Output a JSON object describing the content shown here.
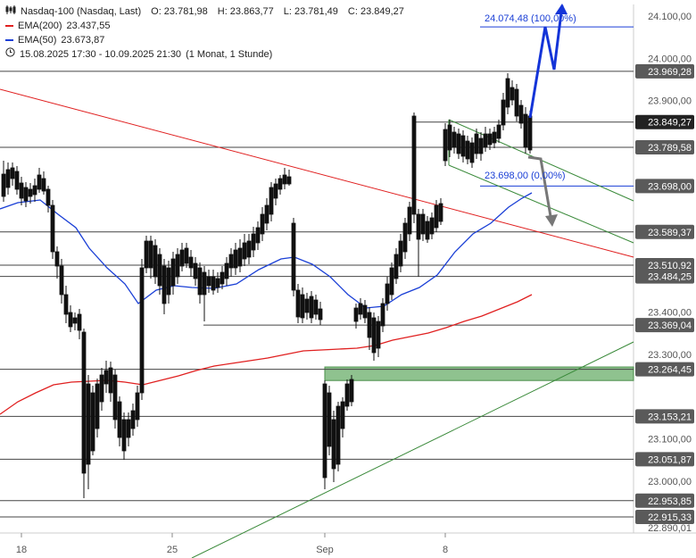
{
  "header": {
    "instrument": "Nasdaq-100 (Nasdaq, Last)",
    "open": "O: 23.781,98",
    "high": "H: 23.863,77",
    "low": "L: 23.781,49",
    "close": "C: 23.849,27",
    "ema200_label": "EMA(200)",
    "ema200_value": "23.437,55",
    "ema50_label": "EMA(50)",
    "ema50_value": "23.673,87",
    "range_text": "15.08.2025 17:30 - 10.09.2025 21:30",
    "interval_text": "(1 Monat, 1 Stunde)",
    "icons": [
      "candlestick-icon",
      "clock-icon"
    ]
  },
  "colors": {
    "ema200": "#e02020",
    "ema50": "#1a3fd6",
    "candle": "#111111",
    "level_line": "#444444",
    "trend_line": "#3a8a3a",
    "zone": "#6aae6a",
    "target_up": "#1434d8",
    "target_down": "#777777",
    "tag_bg": "#5a5a5a",
    "tag_current": "#222222"
  },
  "chart_data": {
    "type": "candlestick",
    "title": "Nasdaq-100 (Nasdaq, Last)",
    "interval": "1 Stunde",
    "y_axis_ticks": [
      "24.100,00",
      "24.000,00",
      "23.900,00",
      "23.400,00",
      "23.300,00",
      "23.100,00",
      "23.000,00",
      "22.890,01"
    ],
    "x_axis_ticks": [
      "18",
      "25",
      "Sep",
      "8"
    ],
    "ylim": [
      22880,
      24145
    ],
    "current_price": 23849.27,
    "current_price_label": "23.849,27",
    "horizontal_levels": [
      {
        "value": 23969.28,
        "label": "23.969,28"
      },
      {
        "value": 23789.58,
        "label": "23.789,58"
      },
      {
        "value": 23698.0,
        "label": "23.698,00"
      },
      {
        "value": 23589.37,
        "label": "23.589,37"
      },
      {
        "value": 23510.92,
        "label": "23.510,92"
      },
      {
        "value": 23484.25,
        "label": "23.484,25"
      },
      {
        "value": 23369.04,
        "label": "23.369,04"
      },
      {
        "value": 23264.45,
        "label": "23.264,45"
      },
      {
        "value": 23153.21,
        "label": "23.153,21"
      },
      {
        "value": 23051.87,
        "label": "23.051,87"
      },
      {
        "value": 22953.85,
        "label": "22.953,85"
      },
      {
        "value": 22915.33,
        "label": "22.915,33"
      }
    ],
    "support_zone": {
      "low": 23238,
      "high": 23270
    },
    "annotations": [
      {
        "value": 24074.48,
        "label": "24.074,48 (100,00%)"
      },
      {
        "value": 23698.0,
        "label": "23.698,00 (0,00%)"
      }
    ],
    "series": [
      {
        "name": "EMA(200)",
        "kind": "line"
      },
      {
        "name": "EMA(50)",
        "kind": "line"
      },
      {
        "name": "Nasdaq-100",
        "kind": "candles"
      }
    ]
  }
}
